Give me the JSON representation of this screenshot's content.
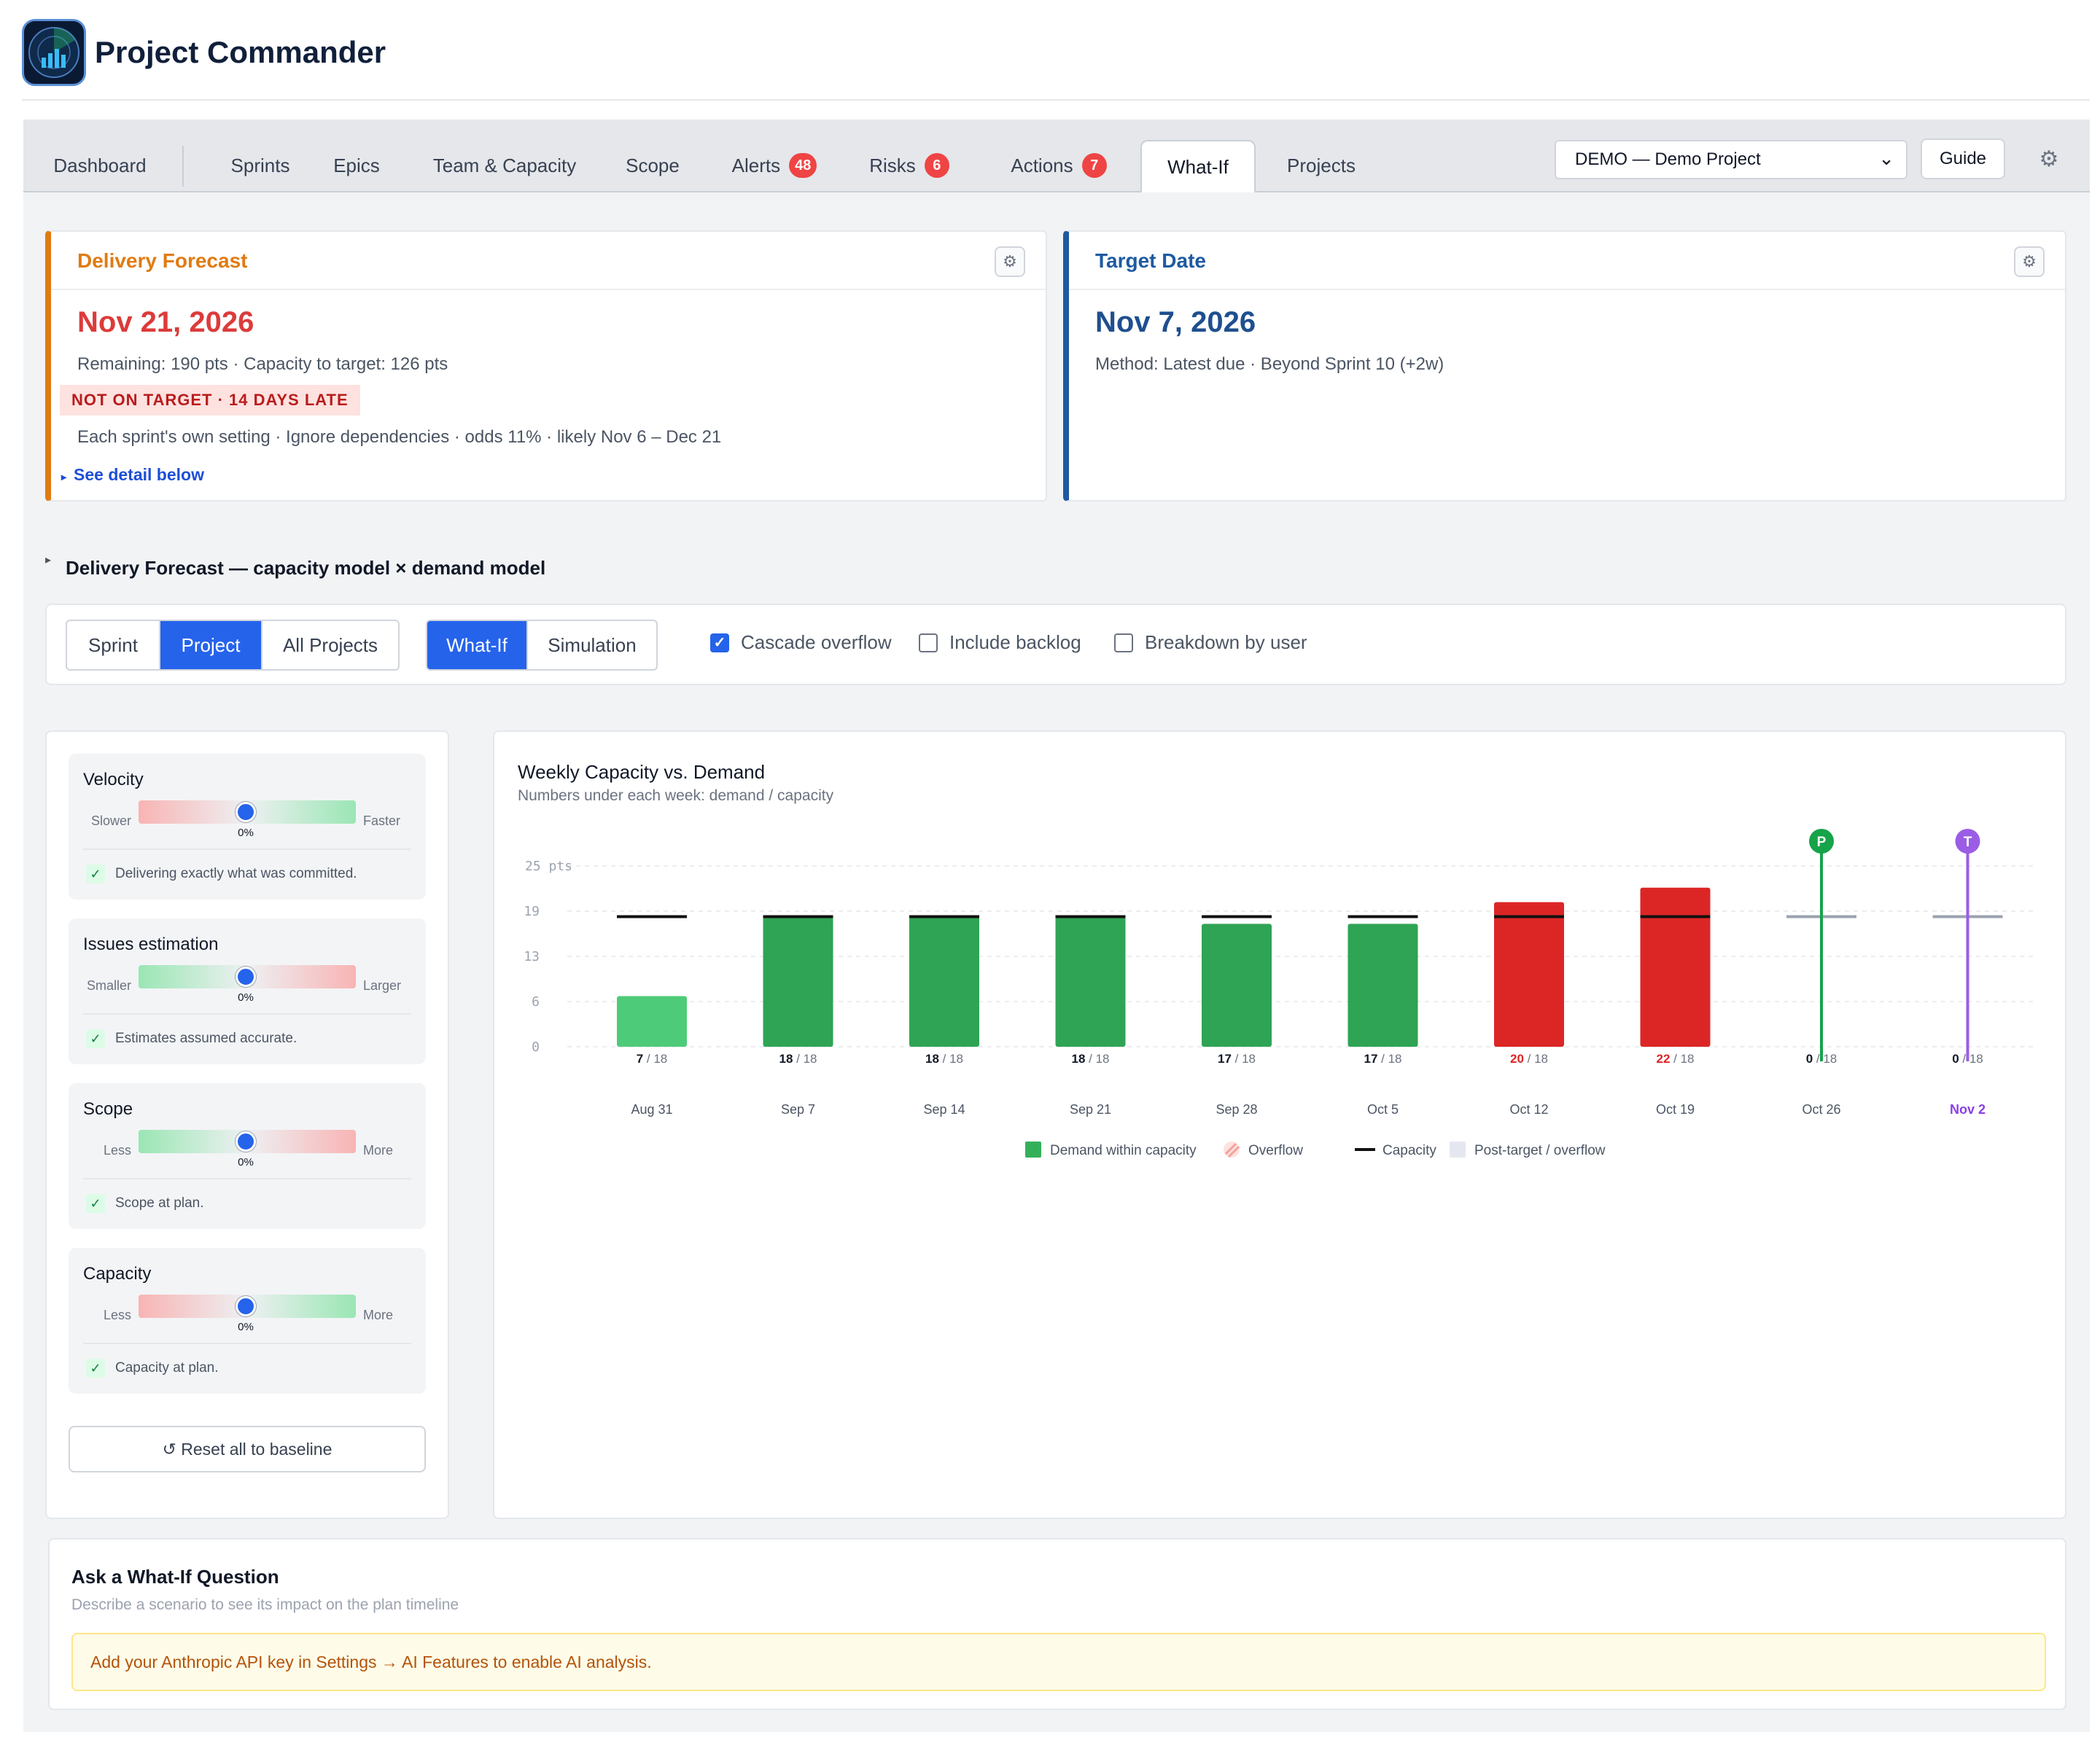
{
  "app": {
    "title": "Project Commander"
  },
  "tabs": [
    {
      "label": "Dashboard"
    },
    {
      "label": "Sprints"
    },
    {
      "label": "Epics"
    },
    {
      "label": "Team & Capacity"
    },
    {
      "label": "Scope"
    },
    {
      "label": "Alerts",
      "badge": "48"
    },
    {
      "label": "Risks",
      "badge": "6"
    },
    {
      "label": "Actions",
      "badge": "7"
    },
    {
      "label": "What-If",
      "active": true
    },
    {
      "label": "Projects"
    }
  ],
  "header": {
    "project_select": "DEMO — Demo Project",
    "guide_label": "Guide",
    "settings_icon": "gear-icon"
  },
  "delivery_forecast": {
    "title": "Delivery Forecast",
    "date": "Nov 21, 2026",
    "remaining": "Remaining: 190 pts · Capacity to target: 126 pts",
    "status": "NOT ON TARGET · 14 DAYS LATE",
    "detail": "Each sprint's own setting · Ignore dependencies · odds 11% · likely Nov 6 – Dec 21",
    "see_detail": "See detail below",
    "accent": "#e07b12",
    "date_color": "#dc3b3b"
  },
  "target_date": {
    "title": "Target Date",
    "date": "Nov 7, 2026",
    "method": "Method: Latest due · Beyond Sprint 10 (+2w)",
    "accent": "#1e5aa0"
  },
  "section": {
    "title": "Delivery Forecast — capacity model × demand model"
  },
  "toolbar": {
    "scope_options": [
      "Sprint",
      "Project",
      "All Projects"
    ],
    "scope_selected": "Project",
    "mode_options": [
      "What-If",
      "Simulation"
    ],
    "mode_selected": "What-If",
    "checkboxes": [
      {
        "label": "Cascade overflow",
        "checked": true
      },
      {
        "label": "Include backlog",
        "checked": false
      },
      {
        "label": "Breakdown by user",
        "checked": false
      }
    ]
  },
  "sliders": [
    {
      "title": "Velocity",
      "left": "Slower",
      "right": "Faster",
      "value": "0%",
      "level": 0,
      "message": "Delivering exactly what was committed.",
      "gradient": "red-green"
    },
    {
      "title": "Issues estimation",
      "left": "Smaller",
      "right": "Larger",
      "value": "0%",
      "level": 0,
      "message": "Estimates assumed accurate.",
      "gradient": "green-red"
    },
    {
      "title": "Scope",
      "left": "Less",
      "right": "More",
      "value": "0%",
      "level": 0,
      "message": "Scope at plan.",
      "gradient": "green-red"
    },
    {
      "title": "Capacity",
      "left": "Less",
      "right": "More",
      "value": "0%",
      "level": 0,
      "message": "Capacity at plan.",
      "gradient": "red-green"
    }
  ],
  "reset_label": "↺ Reset all to baseline",
  "chart_data": {
    "type": "bar",
    "title": "Weekly Capacity vs. Demand",
    "subtitle": "Numbers under each week: demand / capacity",
    "y_ticks": [
      "0",
      "6",
      "13",
      "19",
      "25 pts"
    ],
    "ylim": [
      0,
      25
    ],
    "categories": [
      "Aug 31",
      "Sep 7",
      "Sep 14",
      "Sep 21",
      "Sep 28",
      "Oct 5",
      "Oct 12",
      "Oct 19",
      "Oct 26",
      "Nov 2"
    ],
    "demand": [
      7,
      18,
      18,
      18,
      17,
      17,
      20,
      22,
      0,
      0
    ],
    "capacity": [
      18,
      18,
      18,
      18,
      18,
      18,
      18,
      18,
      18,
      18
    ],
    "markers": [
      {
        "category": "Oct 26",
        "label": "P",
        "color": "#16a34a"
      },
      {
        "category": "Nov 2",
        "label": "T",
        "color": "#9b5de5"
      }
    ],
    "legend": [
      {
        "label": "Demand within capacity",
        "color": "#34b05a"
      },
      {
        "label": "Overflow",
        "color": "#f4a09a"
      },
      {
        "label": "Capacity",
        "color": "#111111"
      },
      {
        "label": "Post-target / overflow",
        "color": "#e5e7f0"
      }
    ],
    "colors": {
      "light_green": "#4ecb78",
      "green": "#2fa455",
      "red": "#dc2626",
      "grid": "#e5e7eb",
      "purple": "#8b3fe8"
    }
  },
  "ask": {
    "title": "Ask a What-If Question",
    "subtitle": "Describe a scenario to see its impact on the plan timeline",
    "warning": "Add your Anthropic API key in Settings → AI Features to enable AI analysis."
  }
}
